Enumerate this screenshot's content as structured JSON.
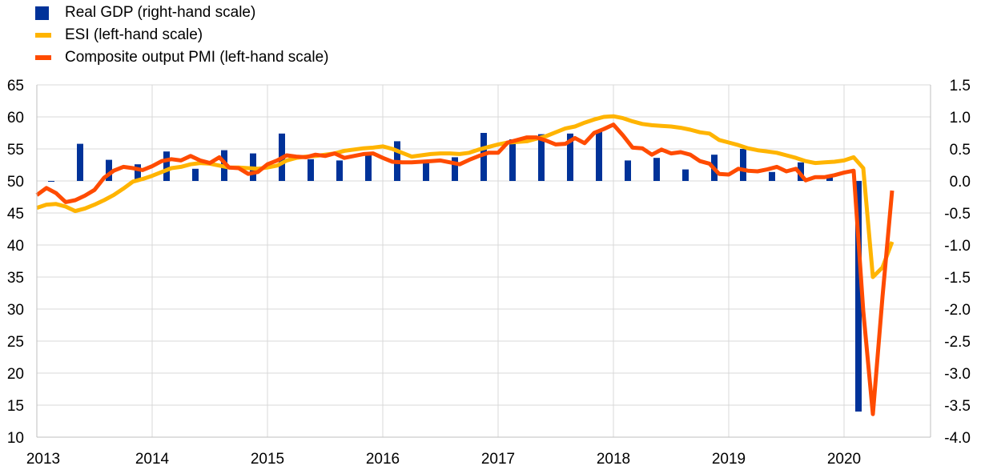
{
  "colors": {
    "gdp": "#003299",
    "esi": "#FFB400",
    "pmi": "#FF4B00",
    "grid": "#D9D9D9",
    "axis": "#BFBFBF"
  },
  "legend": [
    {
      "label": "Real GDP (right-hand scale)",
      "color": "#003299",
      "kind": "bar"
    },
    {
      "label": "ESI (left-hand scale)",
      "color": "#FFB400",
      "kind": "line"
    },
    {
      "label": "Composite output PMI (left-hand scale)",
      "color": "#FF4B00",
      "kind": "line"
    }
  ],
  "chart_data": {
    "type": "line",
    "x_axis": {
      "min": 2013.0,
      "max": 2020.75,
      "ticks": [
        {
          "value": 2013,
          "label": "2013"
        },
        {
          "value": 2014,
          "label": "2014"
        },
        {
          "value": 2015,
          "label": "2015"
        },
        {
          "value": 2016,
          "label": "2016"
        },
        {
          "value": 2017,
          "label": "2017"
        },
        {
          "value": 2018,
          "label": "2018"
        },
        {
          "value": 2019,
          "label": "2019"
        },
        {
          "value": 2020,
          "label": "2020"
        }
      ]
    },
    "y_left": {
      "min": 10,
      "max": 65,
      "ticks": [
        "10",
        "15",
        "20",
        "25",
        "30",
        "35",
        "40",
        "45",
        "50",
        "55",
        "60",
        "65"
      ],
      "tick_values": [
        10,
        15,
        20,
        25,
        30,
        35,
        40,
        45,
        50,
        55,
        60,
        65
      ]
    },
    "y_right": {
      "min": -4.0,
      "max": 1.5,
      "ticks": [
        "-4.0",
        "-3.5",
        "-3.0",
        "-2.5",
        "-2.0",
        "-1.5",
        "-1.0",
        "-0.5",
        "0.0",
        "0.5",
        "1.0",
        "1.5"
      ],
      "tick_values": [
        -4.0,
        -3.5,
        -3.0,
        -2.5,
        -2.0,
        -1.5,
        -1.0,
        -0.5,
        0.0,
        0.5,
        1.0,
        1.5
      ]
    },
    "grid": true,
    "legend_position": "top-left",
    "series": [
      {
        "name": "Real GDP (right-hand scale)",
        "type": "bar",
        "axis": "right",
        "quarters": [
          "2013Q1",
          "2013Q2",
          "2013Q3",
          "2013Q4",
          "2014Q1",
          "2014Q2",
          "2014Q3",
          "2014Q4",
          "2015Q1",
          "2015Q2",
          "2015Q3",
          "2015Q4",
          "2016Q1",
          "2016Q2",
          "2016Q3",
          "2016Q4",
          "2017Q1",
          "2017Q2",
          "2017Q3",
          "2017Q4",
          "2018Q1",
          "2018Q2",
          "2018Q3",
          "2018Q4",
          "2019Q1",
          "2019Q2",
          "2019Q3",
          "2019Q4",
          "2020Q1"
        ],
        "x": [
          2013.125,
          2013.375,
          2013.625,
          2013.875,
          2014.125,
          2014.375,
          2014.625,
          2014.875,
          2015.125,
          2015.375,
          2015.625,
          2015.875,
          2016.125,
          2016.375,
          2016.625,
          2016.875,
          2017.125,
          2017.375,
          2017.625,
          2017.875,
          2018.125,
          2018.375,
          2018.625,
          2018.875,
          2019.125,
          2019.375,
          2019.625,
          2019.875,
          2020.125
        ],
        "values": [
          -0.01,
          0.58,
          0.33,
          0.26,
          0.46,
          0.19,
          0.48,
          0.43,
          0.74,
          0.34,
          0.32,
          0.41,
          0.62,
          0.28,
          0.37,
          0.75,
          0.65,
          0.73,
          0.74,
          0.79,
          0.32,
          0.36,
          0.18,
          0.41,
          0.5,
          0.14,
          0.29,
          0.06,
          -3.6
        ]
      },
      {
        "name": "ESI (left-hand scale)",
        "type": "line",
        "axis": "left",
        "x": [
          2013.0,
          2013.083,
          2013.167,
          2013.25,
          2013.333,
          2013.417,
          2013.5,
          2013.583,
          2013.667,
          2013.75,
          2013.833,
          2013.917,
          2014.0,
          2014.083,
          2014.167,
          2014.25,
          2014.333,
          2014.417,
          2014.5,
          2014.583,
          2014.667,
          2014.75,
          2014.833,
          2014.917,
          2015.0,
          2015.083,
          2015.167,
          2015.25,
          2015.333,
          2015.417,
          2015.5,
          2015.583,
          2015.667,
          2015.75,
          2015.833,
          2015.917,
          2016.0,
          2016.083,
          2016.167,
          2016.25,
          2016.333,
          2016.417,
          2016.5,
          2016.583,
          2016.667,
          2016.75,
          2016.833,
          2016.917,
          2017.0,
          2017.083,
          2017.167,
          2017.25,
          2017.333,
          2017.417,
          2017.5,
          2017.583,
          2017.667,
          2017.75,
          2017.833,
          2017.917,
          2018.0,
          2018.083,
          2018.167,
          2018.25,
          2018.333,
          2018.417,
          2018.5,
          2018.583,
          2018.667,
          2018.75,
          2018.833,
          2018.917,
          2019.0,
          2019.083,
          2019.167,
          2019.25,
          2019.333,
          2019.417,
          2019.5,
          2019.583,
          2019.667,
          2019.75,
          2019.833,
          2019.917,
          2020.0,
          2020.083,
          2020.167,
          2020.25,
          2020.333,
          2020.417
        ],
        "values": [
          45.8,
          46.3,
          46.4,
          46.0,
          45.3,
          45.7,
          46.3,
          47.0,
          47.8,
          48.8,
          49.9,
          50.3,
          50.8,
          51.4,
          52.0,
          52.2,
          52.6,
          52.8,
          52.7,
          52.4,
          52.1,
          52.1,
          52.0,
          51.9,
          52.1,
          52.4,
          53.2,
          53.6,
          53.8,
          53.9,
          54.1,
          54.3,
          54.7,
          54.9,
          55.1,
          55.2,
          55.4,
          55.0,
          54.4,
          53.8,
          54.0,
          54.2,
          54.3,
          54.3,
          54.2,
          54.4,
          54.9,
          55.3,
          55.7,
          56.0,
          56.1,
          56.2,
          56.6,
          57.0,
          57.6,
          58.2,
          58.5,
          59.1,
          59.6,
          60.0,
          60.1,
          59.8,
          59.3,
          58.9,
          58.7,
          58.6,
          58.5,
          58.3,
          58.0,
          57.6,
          57.4,
          56.4,
          56.0,
          55.6,
          55.1,
          54.8,
          54.6,
          54.4,
          54.0,
          53.6,
          53.1,
          52.8,
          52.9,
          53.0,
          53.2,
          53.7,
          52.0,
          35.0,
          36.5,
          40.5
        ]
      },
      {
        "name": "Composite output PMI (left-hand scale)",
        "type": "line",
        "axis": "left",
        "x": [
          2013.0,
          2013.083,
          2013.167,
          2013.25,
          2013.333,
          2013.417,
          2013.5,
          2013.583,
          2013.667,
          2013.75,
          2013.833,
          2013.917,
          2014.0,
          2014.083,
          2014.167,
          2014.25,
          2014.333,
          2014.417,
          2014.5,
          2014.583,
          2014.667,
          2014.75,
          2014.833,
          2014.917,
          2015.0,
          2015.083,
          2015.167,
          2015.25,
          2015.333,
          2015.417,
          2015.5,
          2015.583,
          2015.667,
          2015.75,
          2015.833,
          2015.917,
          2016.0,
          2016.083,
          2016.167,
          2016.25,
          2016.333,
          2016.417,
          2016.5,
          2016.583,
          2016.667,
          2016.75,
          2016.833,
          2016.917,
          2017.0,
          2017.083,
          2017.167,
          2017.25,
          2017.333,
          2017.417,
          2017.5,
          2017.583,
          2017.667,
          2017.75,
          2017.833,
          2017.917,
          2018.0,
          2018.083,
          2018.167,
          2018.25,
          2018.333,
          2018.417,
          2018.5,
          2018.583,
          2018.667,
          2018.75,
          2018.833,
          2018.917,
          2019.0,
          2019.083,
          2019.167,
          2019.25,
          2019.333,
          2019.417,
          2019.5,
          2019.583,
          2019.667,
          2019.75,
          2019.833,
          2019.917,
          2020.0,
          2020.083,
          2020.167,
          2020.25,
          2020.333,
          2020.417
        ],
        "values": [
          47.8,
          48.9,
          48.1,
          46.7,
          47.0,
          47.7,
          48.6,
          50.5,
          51.6,
          52.2,
          52.0,
          51.7,
          52.3,
          53.1,
          53.4,
          53.2,
          53.9,
          53.2,
          52.8,
          53.7,
          52.1,
          52.0,
          51.1,
          51.4,
          52.6,
          53.2,
          54.0,
          53.8,
          53.7,
          54.1,
          53.9,
          54.3,
          53.6,
          53.9,
          54.2,
          54.3,
          53.6,
          53.0,
          52.9,
          52.9,
          53.0,
          53.1,
          53.2,
          52.9,
          52.6,
          53.3,
          53.9,
          54.4,
          54.4,
          56.0,
          56.4,
          56.8,
          56.8,
          56.3,
          55.7,
          55.8,
          56.7,
          55.9,
          57.5,
          58.1,
          58.8,
          57.1,
          55.2,
          55.1,
          54.1,
          54.9,
          54.3,
          54.5,
          54.1,
          53.1,
          52.7,
          51.1,
          51.0,
          51.9,
          51.6,
          51.5,
          51.8,
          52.2,
          51.5,
          51.9,
          50.1,
          50.6,
          50.6,
          50.9,
          51.3,
          51.6,
          29.7,
          13.6,
          31.9,
          48.5
        ]
      }
    ]
  }
}
